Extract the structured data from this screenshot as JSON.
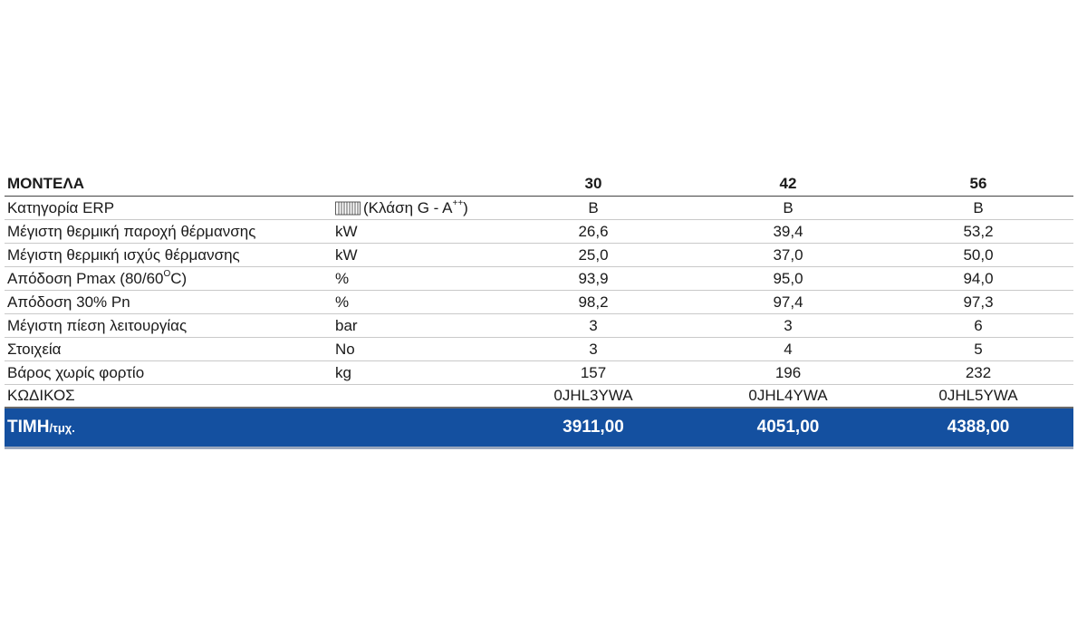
{
  "table": {
    "header": {
      "label": "ΜΟΝΤΕΛΑ",
      "models": [
        "30",
        "42",
        "56"
      ]
    },
    "erp": {
      "label": "Κατηγορία ERP",
      "unit_prefix": "(Κλάση G - A",
      "unit_sup": "++",
      "unit_suffix": ")",
      "icon": "radiator-icon",
      "values": [
        "B",
        "B",
        "B"
      ]
    },
    "rows": [
      {
        "label": "Μέγιστη θερμική παροχή θέρμανσης",
        "unit": "kW",
        "values": [
          "26,6",
          "39,4",
          "53,2"
        ]
      },
      {
        "label": "Μέγιστη θερμική ισχύς θέρμανσης",
        "unit": "kW",
        "values": [
          "25,0",
          "37,0",
          "50,0"
        ]
      },
      {
        "label_prefix": "Απόδοση Pmax (80/60",
        "label_sup": "O",
        "label_suffix": "C)",
        "unit": "%",
        "values": [
          "93,9",
          "95,0",
          "94,0"
        ]
      },
      {
        "label": "Απόδοση 30% Pn",
        "unit": "%",
        "values": [
          "98,2",
          "97,4",
          "97,3"
        ]
      },
      {
        "label": "Μέγιστη πίεση λειτουργίας",
        "unit": "bar",
        "values": [
          "3",
          "3",
          "6"
        ]
      },
      {
        "label": "Στοιχεία",
        "unit": "No",
        "values": [
          "3",
          "4",
          "5"
        ]
      },
      {
        "label": "Βάρος χωρίς φορτίο",
        "unit": "kg",
        "values": [
          "157",
          "196",
          "232"
        ]
      }
    ],
    "code": {
      "label": "ΚΩΔΙΚΟΣ",
      "values": [
        "0JHL3YWA",
        "0JHL4YWA",
        "0JHL5YWA"
      ]
    },
    "price": {
      "label": "ΤΙΜΗ",
      "suffix": "/τμχ.",
      "values": [
        "3911,00",
        "4051,00",
        "4388,00"
      ]
    }
  },
  "colors": {
    "price_band": "#1450a0",
    "text": "#1a1a1a"
  }
}
